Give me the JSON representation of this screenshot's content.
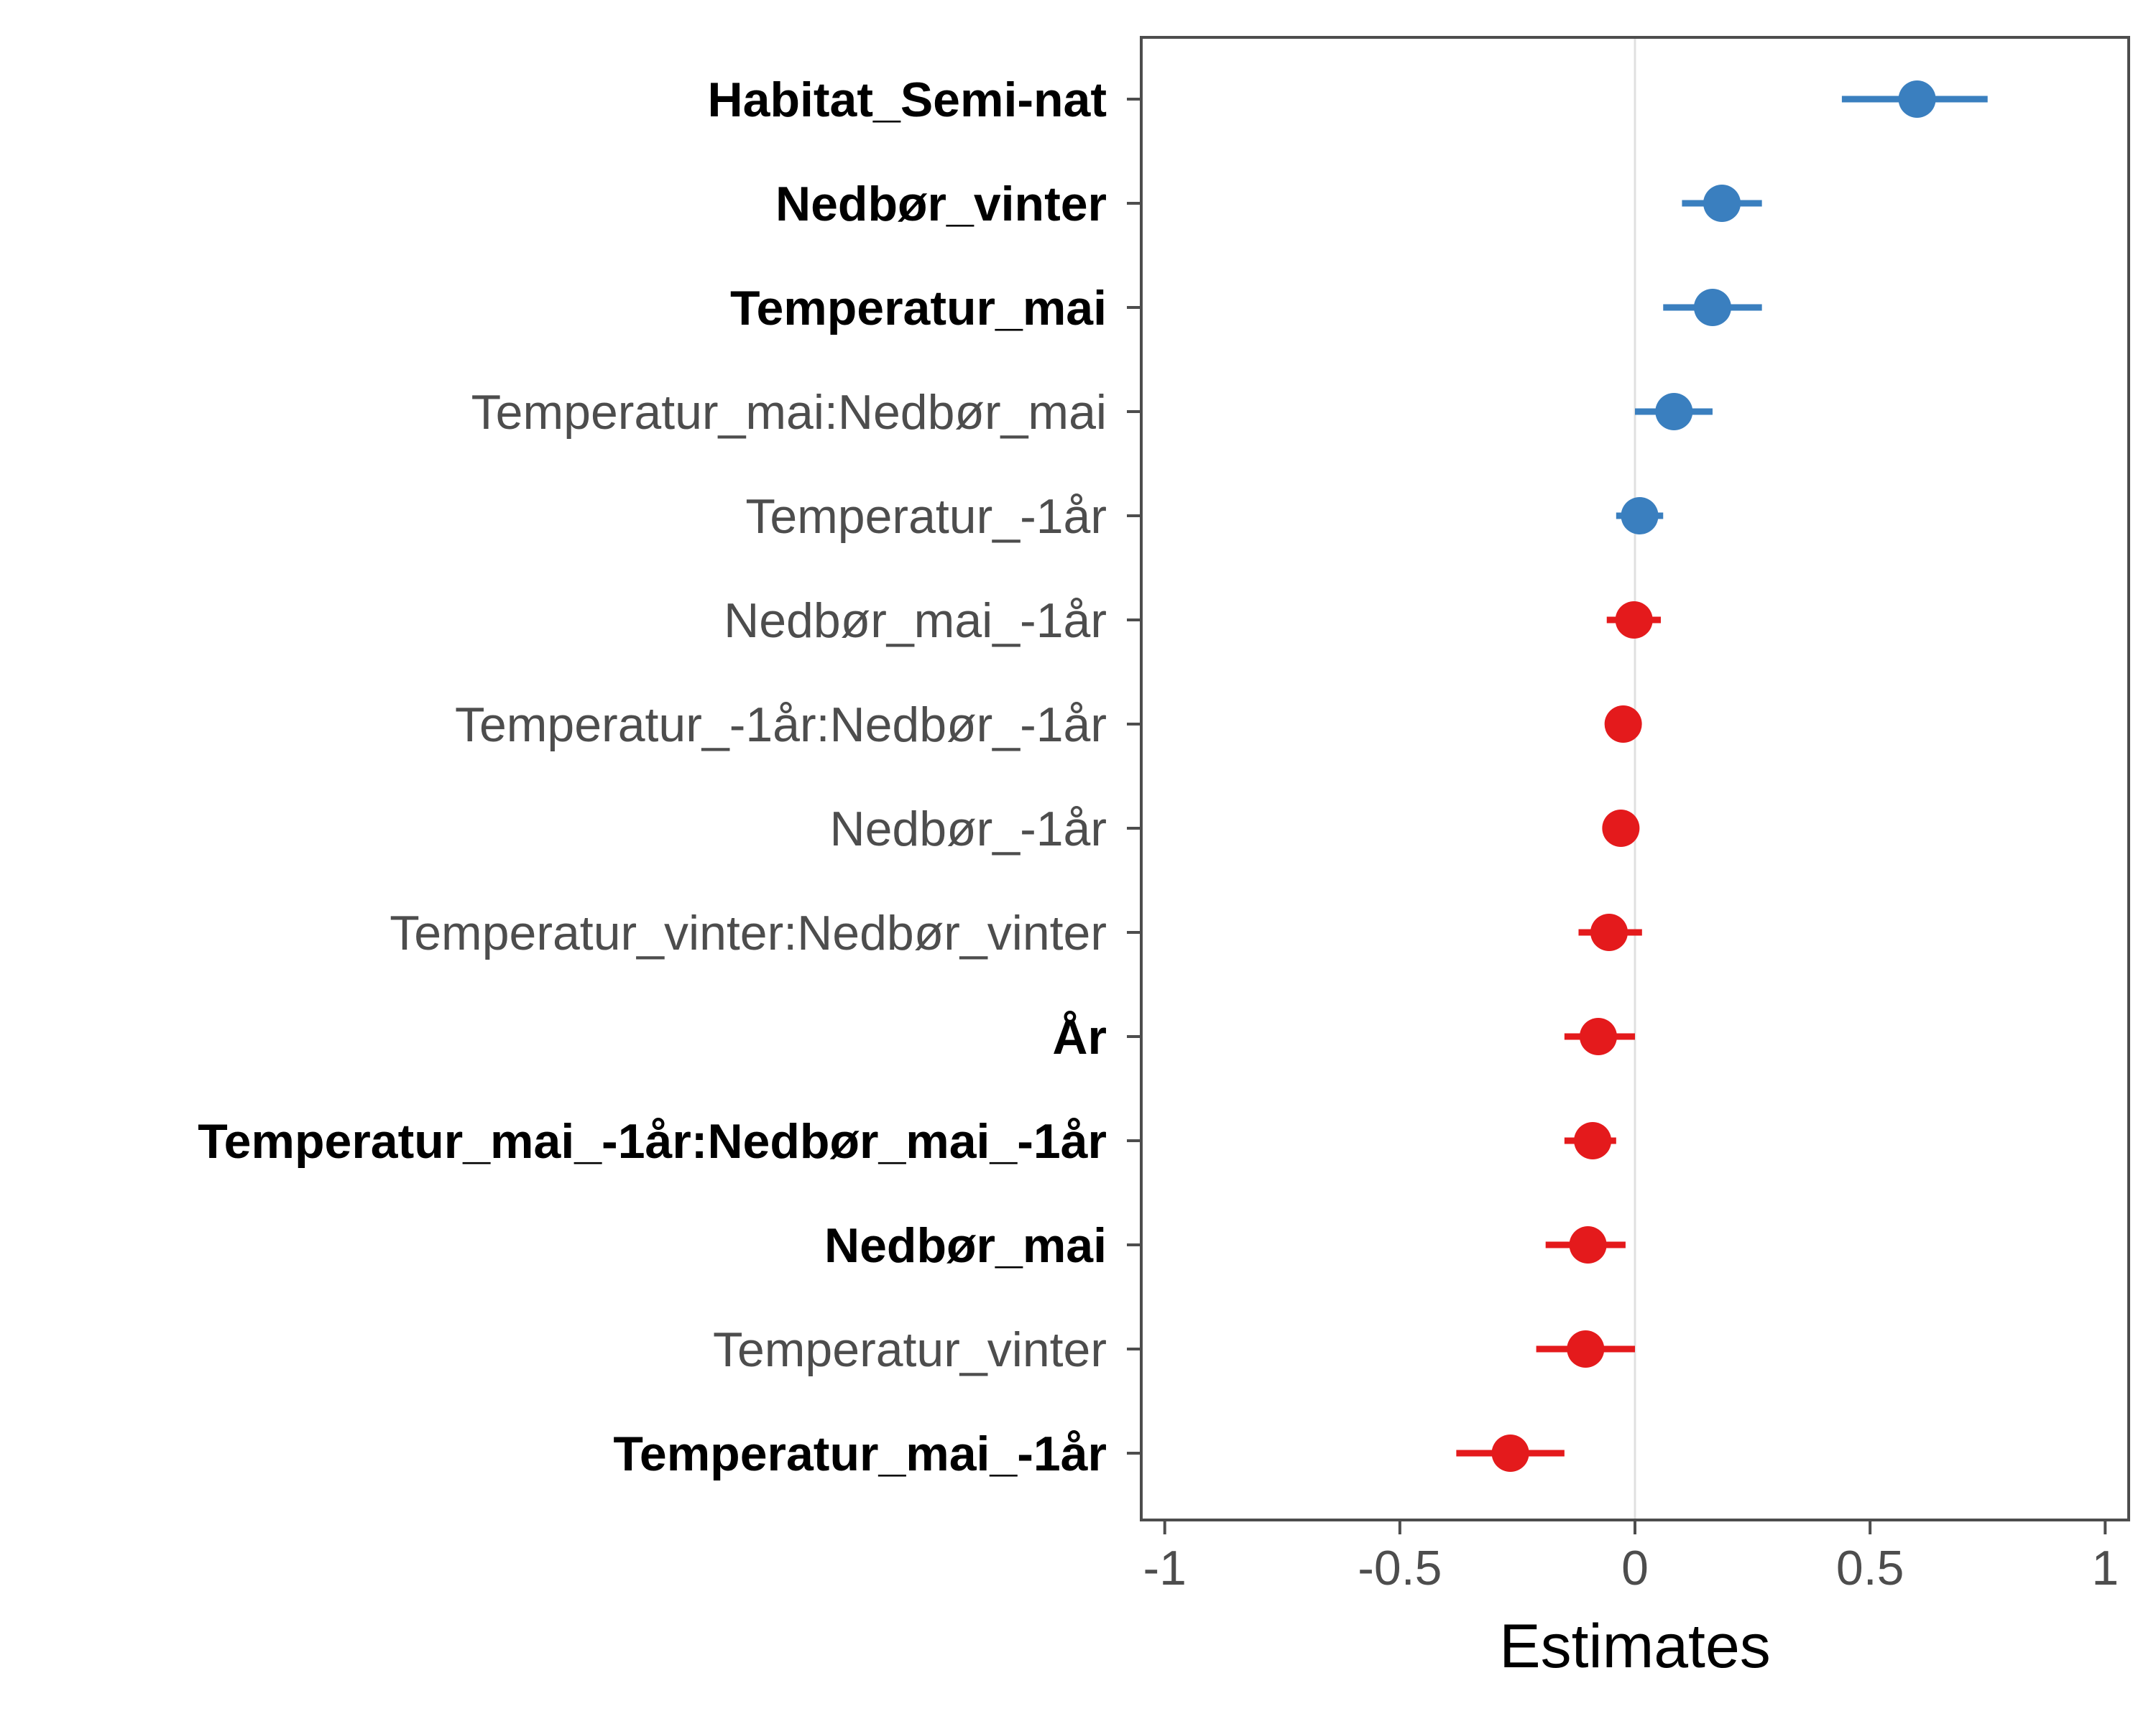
{
  "chart_data": {
    "type": "forest",
    "xlabel": "Estimates",
    "xlim": [
      -1.05,
      1.05
    ],
    "x_ticks": [
      -1,
      -0.5,
      0,
      0.5,
      1
    ],
    "x_tick_labels": [
      "-1",
      "-0.5",
      "0",
      "0.5",
      "1"
    ],
    "reference_line": 0,
    "grid": false,
    "colors": {
      "positive": "#3a7fbf",
      "negative": "#e41a1c",
      "bold_label": "#000000",
      "normal_label": "#4d4d4d",
      "frame": "#4d4d4d",
      "zero_line": "#e0e0e0"
    },
    "terms": [
      {
        "label": "Habitat_Semi-nat",
        "bold": true,
        "estimate": 0.6,
        "ci": [
          0.44,
          0.75
        ],
        "sign": "positive"
      },
      {
        "label": "Nedbør_vinter",
        "bold": true,
        "estimate": 0.185,
        "ci": [
          0.1,
          0.27
        ],
        "sign": "positive"
      },
      {
        "label": "Temperatur_mai",
        "bold": true,
        "estimate": 0.165,
        "ci": [
          0.06,
          0.27
        ],
        "sign": "positive"
      },
      {
        "label": "Temperatur_mai:Nedbør_mai",
        "bold": false,
        "estimate": 0.083,
        "ci": [
          0.0,
          0.165
        ],
        "sign": "positive"
      },
      {
        "label": "Temperatur_-1år",
        "bold": false,
        "estimate": 0.01,
        "ci": [
          -0.04,
          0.06
        ],
        "sign": "positive"
      },
      {
        "label": "Nedbør_mai_-1år",
        "bold": false,
        "estimate": -0.002,
        "ci": [
          -0.06,
          0.055
        ],
        "sign": "negative"
      },
      {
        "label": "Temperatur_-1år:Nedbør_-1år",
        "bold": false,
        "estimate": -0.025,
        "ci": [
          -0.025,
          -0.025
        ],
        "sign": "negative"
      },
      {
        "label": "Nedbør_-1år",
        "bold": false,
        "estimate": -0.03,
        "ci": [
          -0.03,
          -0.03
        ],
        "sign": "negative"
      },
      {
        "label": "Temperatur_vinter:Nedbør_vinter",
        "bold": false,
        "estimate": -0.055,
        "ci": [
          -0.12,
          0.015
        ],
        "sign": "negative"
      },
      {
        "label": "År",
        "bold": true,
        "estimate": -0.078,
        "ci": [
          -0.15,
          0.0
        ],
        "sign": "negative"
      },
      {
        "label": "Temperatur_mai_-1år:Nedbør_mai_-1år",
        "bold": true,
        "estimate": -0.09,
        "ci": [
          -0.15,
          -0.04
        ],
        "sign": "negative"
      },
      {
        "label": "Nedbør_mai",
        "bold": true,
        "estimate": -0.1,
        "ci": [
          -0.19,
          -0.02
        ],
        "sign": "negative"
      },
      {
        "label": "Temperatur_vinter",
        "bold": false,
        "estimate": -0.105,
        "ci": [
          -0.21,
          0.0
        ],
        "sign": "negative"
      },
      {
        "label": "Temperatur_mai_-1år",
        "bold": true,
        "estimate": -0.265,
        "ci": [
          -0.38,
          -0.15
        ],
        "sign": "negative"
      }
    ]
  }
}
